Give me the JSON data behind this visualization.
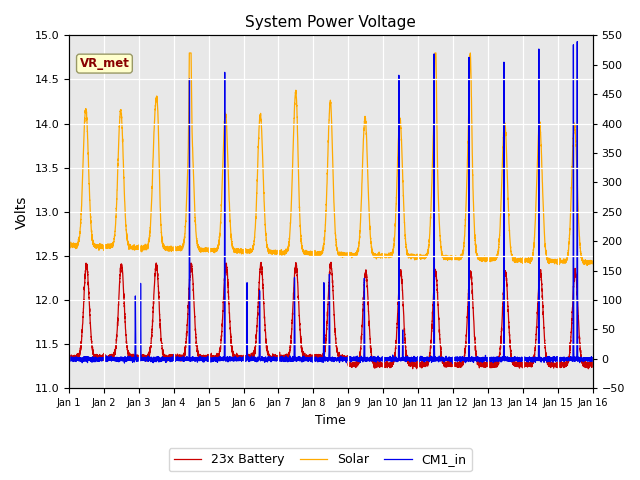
{
  "title": "System Power Voltage",
  "xlabel": "Time",
  "ylabel": "Volts",
  "ylim_left": [
    11.0,
    15.0
  ],
  "ylim_right": [
    -50,
    550
  ],
  "yticks_left": [
    11.0,
    11.5,
    12.0,
    12.5,
    13.0,
    13.5,
    14.0,
    14.5,
    15.0
  ],
  "yticks_right": [
    -50,
    0,
    50,
    100,
    150,
    200,
    250,
    300,
    350,
    400,
    450,
    500,
    550
  ],
  "xtick_labels": [
    "Jan 1",
    "Jan 2",
    "Jan 3",
    "Jan 4",
    "Jan 5",
    "Jan 6",
    "Jan 7",
    "Jan 8",
    "Jan 9",
    "Jan 10",
    "Jan 11",
    "Jan 12",
    "Jan 13",
    "Jan 14",
    "Jan 15",
    "Jan 16"
  ],
  "colors": {
    "battery": "#cc0000",
    "solar": "#ffaa00",
    "cm1": "#0000ee"
  },
  "legend_labels": [
    "23x Battery",
    "Solar",
    "CM1_in"
  ],
  "annotation_text": "VR_met",
  "annotation_box_facecolor": "#ffffcc",
  "annotation_box_edgecolor": "#999966",
  "annotation_text_color": "#880000",
  "bg_color": "#e8e8e8",
  "n_days": 15
}
